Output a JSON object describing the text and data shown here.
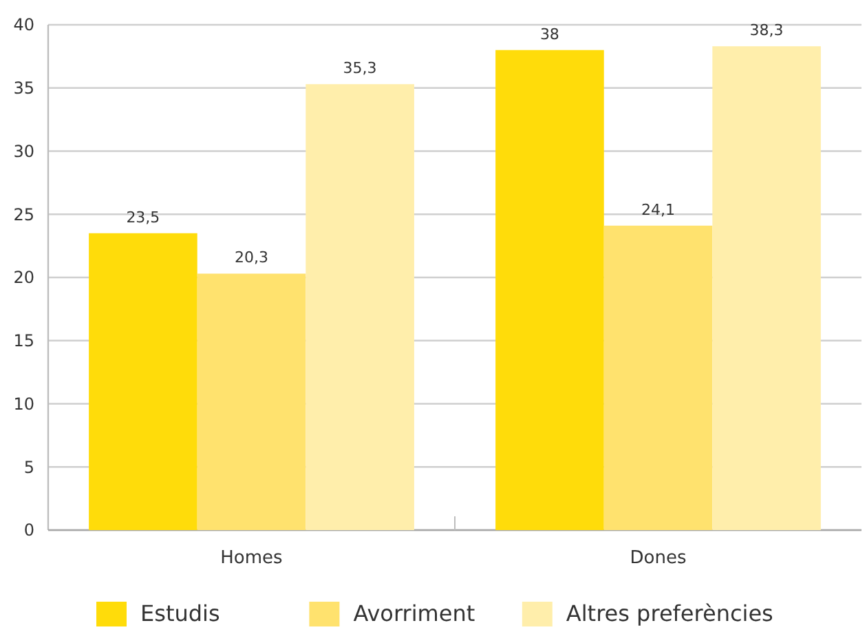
{
  "chart_data": {
    "type": "bar",
    "categories": [
      "Homes",
      "Dones"
    ],
    "series": [
      {
        "name": "Estudis",
        "color": "#ffdc0a",
        "values": [
          23.5,
          38
        ],
        "value_labels": [
          "23,5",
          "38"
        ]
      },
      {
        "name": "Avorriment",
        "color": "#ffe26e",
        "values": [
          20.3,
          24.1
        ],
        "value_labels": [
          "20,3",
          "24,1"
        ]
      },
      {
        "name": "Altres preferències",
        "color": "#ffeeab",
        "values": [
          35.3,
          38.3
        ],
        "value_labels": [
          "35,3",
          "38,3"
        ]
      }
    ],
    "ylim": [
      0,
      40
    ],
    "yticks": [
      0,
      5,
      10,
      15,
      20,
      25,
      30,
      35,
      40
    ],
    "grid": "y",
    "legend": "bottom"
  }
}
